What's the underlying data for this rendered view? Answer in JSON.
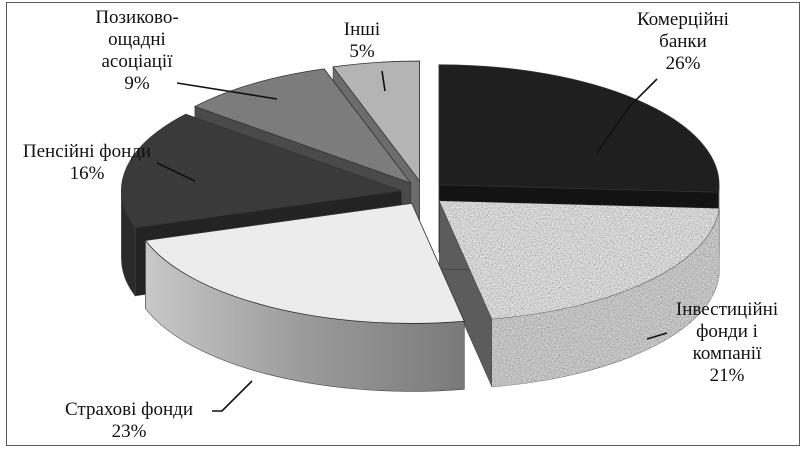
{
  "chart_data": {
    "type": "pie",
    "style": "3d-exploded",
    "slices": [
      {
        "label_lines": [
          "Комерційні",
          "банки"
        ],
        "value": 26,
        "value_label": "26%",
        "color": "#1f1f1f",
        "pattern": "solid"
      },
      {
        "label_lines": [
          "Інвестиційні",
          "фонди і",
          "компанії"
        ],
        "value": 21,
        "value_label": "21%",
        "color": "#9a9a9a",
        "pattern": "granite"
      },
      {
        "label_lines": [
          "Страхові фонди"
        ],
        "value": 23,
        "value_label": "23%",
        "color": "#ececec",
        "pattern": "solid"
      },
      {
        "label_lines": [
          "Пенсійні фонди"
        ],
        "value": 16,
        "value_label": "16%",
        "color": "#3a3a3a",
        "pattern": "solid"
      },
      {
        "label_lines": [
          "Позиково-",
          "ощадні",
          "асоціації"
        ],
        "value": 9,
        "value_label": "9%",
        "color": "#7c7c7c",
        "pattern": "solid"
      },
      {
        "label_lines": [
          "Інші"
        ],
        "value": 5,
        "value_label": "5%",
        "color": "#b4b4b4",
        "pattern": "solid"
      }
    ],
    "legend": "none",
    "data_labels": "outside with leader lines"
  }
}
